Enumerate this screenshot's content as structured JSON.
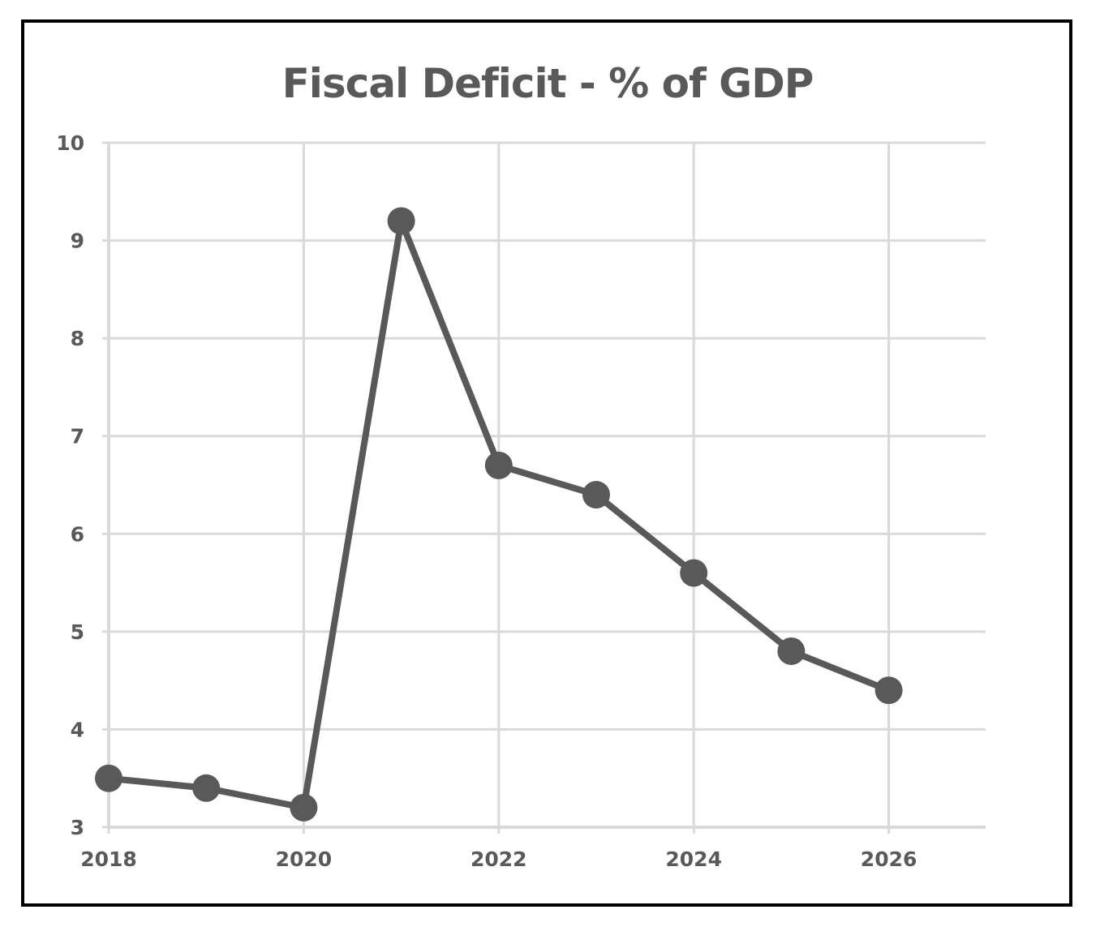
{
  "chart_data": {
    "type": "line",
    "title": "Fiscal Deficit - % of GDP",
    "xlabel": "",
    "ylabel": "",
    "x": [
      2018,
      2019,
      2020,
      2021,
      2022,
      2023,
      2024,
      2025,
      2026
    ],
    "series": [
      {
        "values": [
          3.5,
          3.4,
          3.2,
          9.2,
          6.7,
          6.4,
          5.6,
          4.8,
          4.4
        ]
      }
    ],
    "xlim": [
      2018,
      2027
    ],
    "ylim": [
      3,
      10
    ],
    "x_ticks": [
      2018,
      2020,
      2022,
      2024,
      2026
    ],
    "y_ticks": [
      3,
      4,
      5,
      6,
      7,
      8,
      9,
      10
    ],
    "grid": true,
    "legend": "none",
    "colors": {
      "line": "#595959",
      "marker": "#595959",
      "grid": "#d9d9d9",
      "text": "#595959",
      "frame": "#000000"
    }
  }
}
